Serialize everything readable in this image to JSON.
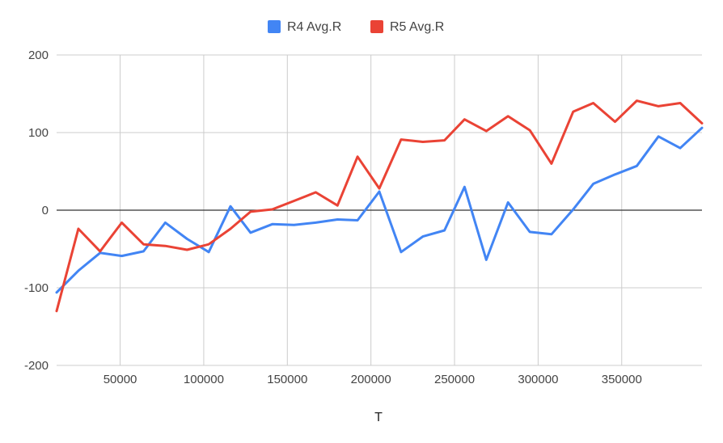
{
  "chart_data": {
    "type": "line",
    "title": "",
    "xlabel": "T",
    "ylabel": "",
    "xlim": [
      12000,
      398000
    ],
    "ylim": [
      -200,
      200
    ],
    "x_ticks": [
      50000,
      100000,
      150000,
      200000,
      250000,
      300000,
      350000
    ],
    "y_ticks": [
      -200,
      -100,
      0,
      100,
      200
    ],
    "grid": true,
    "legend": "top-center",
    "series": [
      {
        "name": "R4 Avg.R",
        "color": "#4285f4",
        "x": [
          12000,
          25000,
          38000,
          51000,
          64000,
          77000,
          90000,
          103000,
          116000,
          128000,
          141000,
          154000,
          167000,
          180000,
          192000,
          205000,
          218000,
          231000,
          244000,
          256000,
          269000,
          282000,
          295000,
          308000,
          321000,
          333000,
          346000,
          359000,
          372000,
          385000,
          398000
        ],
        "values": [
          -106,
          -78,
          -55,
          -59,
          -53,
          -16,
          -37,
          -54,
          5,
          -29,
          -18,
          -19,
          -16,
          -12,
          -13,
          24,
          -54,
          -34,
          -26,
          30,
          -64,
          10,
          -28,
          -31,
          1,
          34,
          46,
          57,
          95,
          80,
          106
        ]
      },
      {
        "name": "R5 Avg.R",
        "color": "#ea4335",
        "x": [
          12000,
          25000,
          38000,
          51000,
          64000,
          77000,
          90000,
          103000,
          116000,
          128000,
          141000,
          154000,
          167000,
          180000,
          192000,
          205000,
          218000,
          231000,
          244000,
          256000,
          269000,
          282000,
          295000,
          308000,
          321000,
          333000,
          346000,
          359000,
          372000,
          385000,
          398000
        ],
        "values": [
          -130,
          -24,
          -53,
          -16,
          -44,
          -46,
          -51,
          -44,
          -24,
          -2,
          1,
          12,
          23,
          6,
          69,
          28,
          91,
          88,
          90,
          117,
          102,
          121,
          103,
          60,
          127,
          138,
          114,
          141,
          134,
          138,
          112
        ]
      }
    ]
  }
}
